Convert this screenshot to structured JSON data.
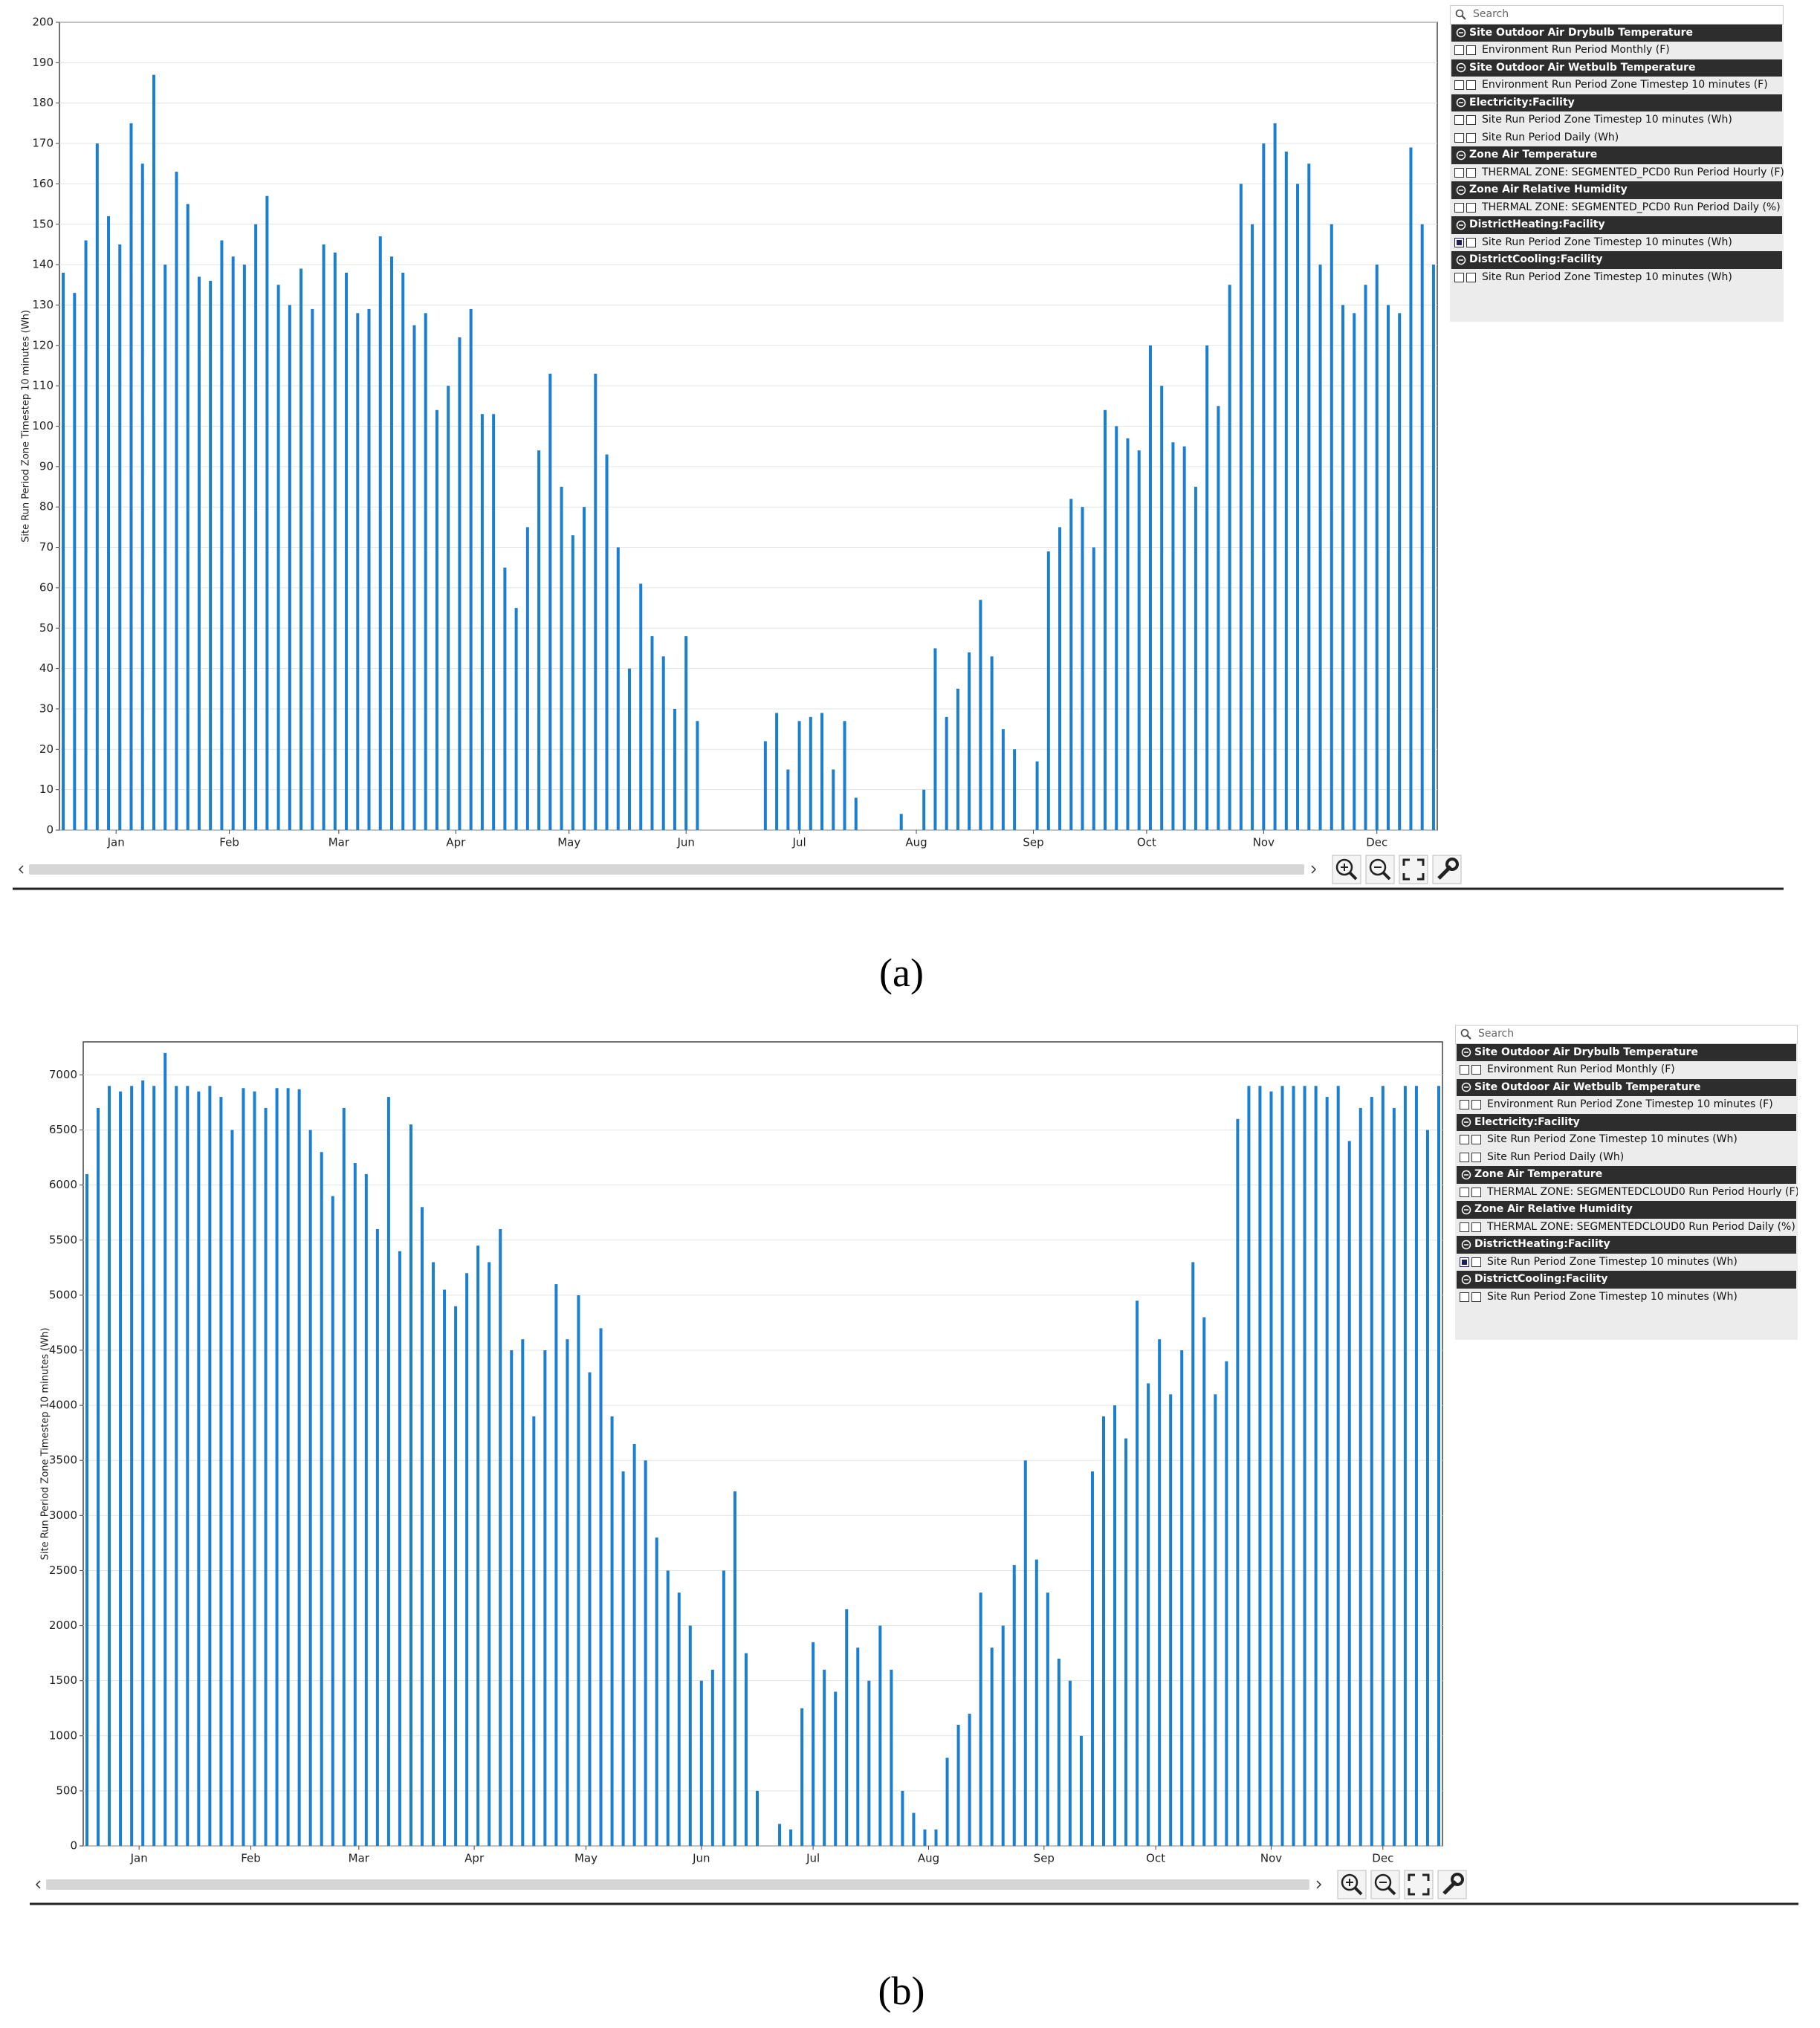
{
  "chart_data": [
    {
      "type": "bar",
      "ylabel": "Site Run Period Zone Timestep 10 minutes (Wh)",
      "color": "#1a7fd0",
      "grid": true,
      "xlim": [
        0,
        365
      ],
      "xticks": [
        {
          "value": 15,
          "label": "Jan"
        },
        {
          "value": 45,
          "label": "Feb"
        },
        {
          "value": 74,
          "label": "Mar"
        },
        {
          "value": 105,
          "label": "Apr"
        },
        {
          "value": 135,
          "label": "May"
        },
        {
          "value": 166,
          "label": "Jun"
        },
        {
          "value": 196,
          "label": "Jul"
        },
        {
          "value": 227,
          "label": "Aug"
        },
        {
          "value": 258,
          "label": "Sep"
        },
        {
          "value": 288,
          "label": "Oct"
        },
        {
          "value": 319,
          "label": "Nov"
        },
        {
          "value": 349,
          "label": "Dec"
        }
      ],
      "ylim": [
        0,
        200
      ],
      "yticks": [
        0,
        10,
        20,
        30,
        40,
        50,
        60,
        70,
        80,
        90,
        100,
        110,
        120,
        130,
        140,
        150,
        160,
        170,
        180,
        190,
        200
      ],
      "x": [
        1,
        4,
        7,
        10,
        13,
        16,
        19,
        22,
        25,
        28,
        31,
        34,
        37,
        40,
        43,
        46,
        49,
        52,
        55,
        58,
        61,
        64,
        67,
        70,
        73,
        76,
        79,
        82,
        85,
        88,
        91,
        94,
        97,
        100,
        103,
        106,
        109,
        112,
        115,
        118,
        121,
        124,
        127,
        130,
        133,
        136,
        139,
        142,
        145,
        148,
        151,
        154,
        157,
        160,
        163,
        166,
        169,
        172,
        175,
        178,
        181,
        184,
        187,
        190,
        193,
        196,
        199,
        202,
        205,
        208,
        211,
        214,
        217,
        220,
        223,
        226,
        229,
        232,
        235,
        238,
        241,
        244,
        247,
        250,
        253,
        256,
        259,
        262,
        265,
        268,
        271,
        274,
        277,
        280,
        283,
        286,
        289,
        292,
        295,
        298,
        301,
        304,
        307,
        310,
        313,
        316,
        319,
        322,
        325,
        328,
        331,
        334,
        337,
        340,
        343,
        346,
        349,
        352,
        355,
        358,
        361,
        364
      ],
      "values": [
        138,
        133,
        146,
        170,
        152,
        145,
        175,
        165,
        187,
        140,
        163,
        155,
        137,
        136,
        146,
        142,
        140,
        150,
        157,
        135,
        130,
        139,
        129,
        145,
        143,
        138,
        128,
        129,
        147,
        142,
        138,
        125,
        128,
        104,
        110,
        122,
        129,
        103,
        103,
        65,
        55,
        75,
        94,
        113,
        85,
        73,
        80,
        113,
        93,
        70,
        40,
        61,
        48,
        43,
        30,
        48,
        27,
        0,
        0,
        0,
        0,
        0,
        22,
        29,
        15,
        27,
        28,
        29,
        15,
        27,
        8,
        0,
        0,
        0,
        4,
        0,
        10,
        45,
        28,
        35,
        44,
        57,
        43,
        25,
        20,
        0,
        17,
        69,
        75,
        82,
        80,
        70,
        104,
        100,
        97,
        94,
        120,
        110,
        96,
        95,
        85,
        120,
        105,
        135,
        160,
        150,
        170,
        175,
        168,
        160,
        165,
        140,
        150,
        130,
        128,
        135,
        140,
        130,
        128,
        169,
        150,
        140
      ]
    },
    {
      "type": "bar",
      "ylabel": "Site Run Period Zone Timestep 10 minutes (Wh)",
      "color": "#1a7fd0",
      "grid": true,
      "xlim": [
        0,
        365
      ],
      "xticks": [
        {
          "value": 15,
          "label": "Jan"
        },
        {
          "value": 45,
          "label": "Feb"
        },
        {
          "value": 74,
          "label": "Mar"
        },
        {
          "value": 105,
          "label": "Apr"
        },
        {
          "value": 135,
          "label": "May"
        },
        {
          "value": 166,
          "label": "Jun"
        },
        {
          "value": 196,
          "label": "Jul"
        },
        {
          "value": 227,
          "label": "Aug"
        },
        {
          "value": 258,
          "label": "Sep"
        },
        {
          "value": 288,
          "label": "Oct"
        },
        {
          "value": 319,
          "label": "Nov"
        },
        {
          "value": 349,
          "label": "Dec"
        }
      ],
      "ylim": [
        0,
        7300
      ],
      "yticks": [
        0,
        500,
        1000,
        1500,
        2000,
        2500,
        3000,
        3500,
        4000,
        4500,
        5000,
        5500,
        6000,
        6500,
        7000
      ],
      "x": [
        1,
        4,
        7,
        10,
        13,
        16,
        19,
        22,
        25,
        28,
        31,
        34,
        37,
        40,
        43,
        46,
        49,
        52,
        55,
        58,
        61,
        64,
        67,
        70,
        73,
        76,
        79,
        82,
        85,
        88,
        91,
        94,
        97,
        100,
        103,
        106,
        109,
        112,
        115,
        118,
        121,
        124,
        127,
        130,
        133,
        136,
        139,
        142,
        145,
        148,
        151,
        154,
        157,
        160,
        163,
        166,
        169,
        172,
        175,
        178,
        181,
        184,
        187,
        190,
        193,
        196,
        199,
        202,
        205,
        208,
        211,
        214,
        217,
        220,
        223,
        226,
        229,
        232,
        235,
        238,
        241,
        244,
        247,
        250,
        253,
        256,
        259,
        262,
        265,
        268,
        271,
        274,
        277,
        280,
        283,
        286,
        289,
        292,
        295,
        298,
        301,
        304,
        307,
        310,
        313,
        316,
        319,
        322,
        325,
        328,
        331,
        334,
        337,
        340,
        343,
        346,
        349,
        352,
        355,
        358,
        361,
        364
      ],
      "values": [
        6100,
        6700,
        6900,
        6850,
        6900,
        6950,
        6900,
        7200,
        6900,
        6900,
        6850,
        6900,
        6800,
        6500,
        6880,
        6850,
        6700,
        6880,
        6880,
        6870,
        6500,
        6300,
        5900,
        6700,
        6200,
        6100,
        5600,
        6800,
        5400,
        6550,
        5800,
        5300,
        5050,
        4900,
        5200,
        5450,
        5300,
        5600,
        4500,
        4600,
        3900,
        4500,
        5100,
        4600,
        5000,
        4300,
        4700,
        3900,
        3400,
        3650,
        3500,
        2800,
        2500,
        2300,
        2000,
        1500,
        1600,
        2500,
        3220,
        1750,
        500,
        0,
        200,
        150,
        1250,
        1850,
        1600,
        1400,
        2150,
        1800,
        1500,
        2000,
        1600,
        500,
        300,
        150,
        150,
        800,
        1100,
        1200,
        2300,
        1800,
        2000,
        2550,
        3500,
        2600,
        2300,
        1700,
        1500,
        1000,
        3400,
        3900,
        4000,
        3700,
        4950,
        4200,
        4600,
        4100,
        4500,
        5300,
        4800,
        4100,
        4400,
        6600,
        6900,
        6900,
        6850,
        6900,
        6900,
        6900,
        6900,
        6800,
        6900,
        6400,
        6700,
        6800,
        6900,
        6700,
        6900,
        6900,
        6500,
        6900
      ]
    }
  ],
  "panels": [
    {
      "search": "Search",
      "groups": [
        {
          "title": "Site Outdoor Air Drybulb Temperature",
          "items": [
            {
              "label": "Environment Run Period Monthly (F)",
              "checked": false
            }
          ]
        },
        {
          "title": "Site Outdoor Air Wetbulb Temperature",
          "items": [
            {
              "label": "Environment Run Period Zone Timestep 10 minutes (F)",
              "checked": false
            }
          ]
        },
        {
          "title": "Electricity:Facility",
          "items": [
            {
              "label": "Site Run Period Zone Timestep 10 minutes (Wh)",
              "checked": false
            },
            {
              "label": "Site Run Period Daily (Wh)",
              "checked": false
            }
          ]
        },
        {
          "title": "Zone Air Temperature",
          "items": [
            {
              "label": "THERMAL ZONE: SEGMENTED_PCD0 Run Period Hourly (F)",
              "checked": false
            }
          ]
        },
        {
          "title": "Zone Air Relative Humidity",
          "items": [
            {
              "label": "THERMAL ZONE: SEGMENTED_PCD0 Run Period Daily (%)",
              "checked": false
            }
          ]
        },
        {
          "title": "DistrictHeating:Facility",
          "items": [
            {
              "label": "Site Run Period Zone Timestep 10 minutes (Wh)",
              "checked": true
            }
          ]
        },
        {
          "title": "DistrictCooling:Facility",
          "items": [
            {
              "label": "Site Run Period Zone Timestep 10 minutes (Wh)",
              "checked": false
            }
          ]
        }
      ]
    },
    {
      "search": "Search",
      "groups": [
        {
          "title": "Site Outdoor Air Drybulb Temperature",
          "items": [
            {
              "label": "Environment Run Period Monthly (F)",
              "checked": false
            }
          ]
        },
        {
          "title": "Site Outdoor Air Wetbulb Temperature",
          "items": [
            {
              "label": "Environment Run Period Zone Timestep 10 minutes (F)",
              "checked": false
            }
          ]
        },
        {
          "title": "Electricity:Facility",
          "items": [
            {
              "label": "Site Run Period Zone Timestep 10 minutes (Wh)",
              "checked": false
            },
            {
              "label": "Site Run Period Daily (Wh)",
              "checked": false
            }
          ]
        },
        {
          "title": "Zone Air Temperature",
          "items": [
            {
              "label": "THERMAL ZONE: SEGMENTEDCLOUD0 Run Period Hourly (F)",
              "checked": false
            }
          ]
        },
        {
          "title": "Zone Air Relative Humidity",
          "items": [
            {
              "label": "THERMAL ZONE: SEGMENTEDCLOUD0 Run Period Daily (%)",
              "checked": false
            }
          ]
        },
        {
          "title": "DistrictHeating:Facility",
          "items": [
            {
              "label": "Site Run Period Zone Timestep 10 minutes (Wh)",
              "checked": true
            }
          ]
        },
        {
          "title": "DistrictCooling:Facility",
          "items": [
            {
              "label": "Site Run Period Zone Timestep 10 minutes (Wh)",
              "checked": false
            }
          ]
        }
      ]
    }
  ],
  "captions": [
    "(a)",
    "(b)"
  ]
}
